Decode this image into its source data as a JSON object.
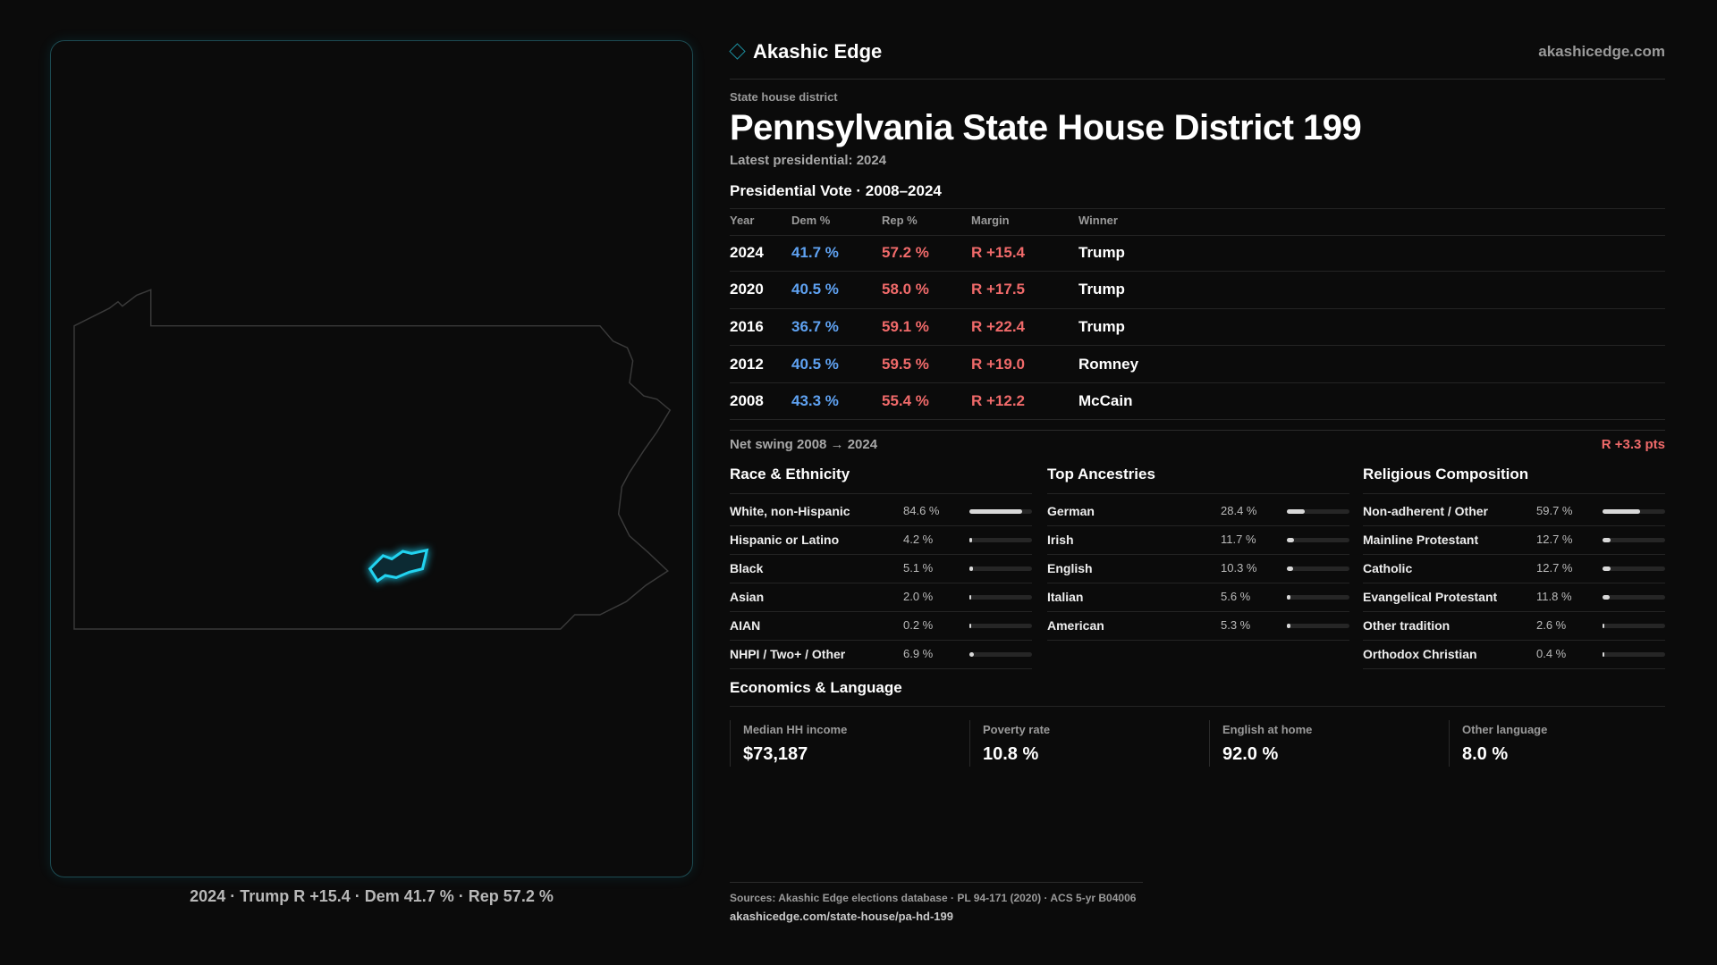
{
  "header": {
    "brand": "Akashic Edge",
    "site": "akashicedge.com"
  },
  "district": {
    "kicker": "State house district",
    "title": "Pennsylvania State House District 199",
    "latest": "Latest presidential: 2024"
  },
  "vote_table": {
    "title": "Presidential Vote · 2008–2024",
    "columns": [
      "Year",
      "Dem %",
      "Rep %",
      "Margin",
      "Winner"
    ],
    "rows": [
      [
        "2024",
        "41.7 %",
        "57.2 %",
        "R +15.4",
        "Trump"
      ],
      [
        "2020",
        "40.5 %",
        "58.0 %",
        "R +17.5",
        "Trump"
      ],
      [
        "2016",
        "36.7 %",
        "59.1 %",
        "R +22.4",
        "Trump"
      ],
      [
        "2012",
        "40.5 %",
        "59.5 %",
        "R +19.0",
        "Romney"
      ],
      [
        "2008",
        "43.3 %",
        "55.4 %",
        "R +12.2",
        "McCain"
      ]
    ]
  },
  "swing": {
    "label": "Net swing 2008 → 2024",
    "value": "R +3.3 pts"
  },
  "sections": [
    {
      "title": "Race & Ethnicity",
      "items": [
        {
          "label": "White, non-Hispanic",
          "value": 84.6,
          "value_label": "84.6 %"
        },
        {
          "label": "Hispanic or Latino",
          "value": 4.2,
          "value_label": "4.2 %"
        },
        {
          "label": "Black",
          "value": 5.1,
          "value_label": "5.1 %"
        },
        {
          "label": "Asian",
          "value": 2.0,
          "value_label": "2.0 %"
        },
        {
          "label": "AIAN",
          "value": 0.2,
          "value_label": "0.2 %"
        },
        {
          "label": "NHPI / Two+ / Other",
          "value": 6.9,
          "value_label": "6.9 %"
        }
      ]
    },
    {
      "title": "Top Ancestries",
      "items": [
        {
          "label": "German",
          "value": 28.4,
          "value_label": "28.4 %"
        },
        {
          "label": "Irish",
          "value": 11.7,
          "value_label": "11.7 %"
        },
        {
          "label": "English",
          "value": 10.3,
          "value_label": "10.3 %"
        },
        {
          "label": "Italian",
          "value": 5.6,
          "value_label": "5.6 %"
        },
        {
          "label": "American",
          "value": 5.3,
          "value_label": "5.3 %"
        }
      ]
    },
    {
      "title": "Religious Composition",
      "items": [
        {
          "label": "Non-adherent / Other",
          "value": 59.7,
          "value_label": "59.7 %"
        },
        {
          "label": "Mainline Protestant",
          "value": 12.7,
          "value_label": "12.7 %"
        },
        {
          "label": "Catholic",
          "value": 12.7,
          "value_label": "12.7 %"
        },
        {
          "label": "Evangelical Protestant",
          "value": 11.8,
          "value_label": "11.8 %"
        },
        {
          "label": "Other tradition",
          "value": 2.6,
          "value_label": "2.6 %"
        },
        {
          "label": "Orthodox Christian",
          "value": 0.4,
          "value_label": "0.4 %"
        }
      ]
    }
  ],
  "economics": {
    "title": "Economics & Language",
    "cards": [
      {
        "label": "Median HH income",
        "value": "$73,187"
      },
      {
        "label": "Poverty rate",
        "value": "10.8 %"
      },
      {
        "label": "English at home",
        "value": "92.0 %"
      },
      {
        "label": "Other language",
        "value": "8.0 %"
      }
    ]
  },
  "map_caption": "2024 · Trump R +15.4 · Dem 41.7 % · Rep 57.2 %",
  "sources": {
    "text": "Sources: Akashic Edge elections database · PL 94-171 (2020) · ACS 5-yr B04006",
    "url": "akashicedge.com/state-house/pa-hd-199"
  }
}
